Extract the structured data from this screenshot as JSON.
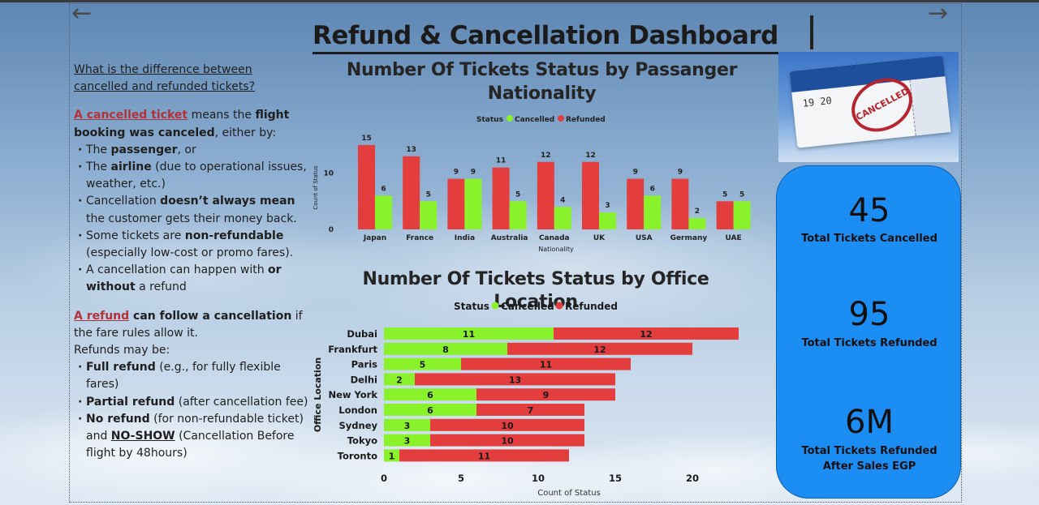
{
  "title": "Refund & Cancellation Dashboard",
  "nav": {
    "back_glyph": "←",
    "forward_glyph": "→"
  },
  "info": {
    "question": "What is the difference between cancelled and refunded tickets?",
    "cancel_term": "A cancelled ticket",
    "cancel_text_1": " means the ",
    "cancel_bold": "flight booking was canceled",
    "cancel_text_2": ", either by:",
    "b1_pre": "The ",
    "b1_bold": "passenger",
    "b1_post": ", or",
    "b2_pre": "The ",
    "b2_bold": "airline",
    "b2_post": " (due to operational issues, weather, etc.)",
    "b3_pre": "Cancellation ",
    "b3_bold": "doesn’t always mean",
    "b3_post": " the customer gets their money back.",
    "b4_pre": "Some tickets are ",
    "b4_bold": "non-refundable",
    "b4_post": " (especially low-cost or promo fares).",
    "b5_pre": "A cancellation can happen with ",
    "b5_bold1": "or without",
    "b5_post": " a refund",
    "refund_term": "A refund",
    "refund_bold": " can follow a cancellation",
    "refund_text": " if the fare rules allow it.",
    "refunds_may_be": "Refunds may be:",
    "r1_bold": "Full refund",
    "r1_post": " (e.g., for fully flexible fares)",
    "r2_bold": "Partial refund",
    "r2_post": " (after cancellation fee)",
    "r3_bold": "No refund",
    "r3_mid": " (for non-refundable ticket) and ",
    "r3_noshow": "NO-SHOW",
    "r3_post": " (Cancellation Before flight by 48hours)"
  },
  "kpis": [
    {
      "value": "45",
      "label": "Total Tickets Cancelled"
    },
    {
      "value": "95",
      "label": "Total Tickets Refunded"
    },
    {
      "value": "6M",
      "label": "Total Tickets Refunded After Sales EGP"
    }
  ],
  "photo": {
    "stamp_text": "CANCELLED",
    "ticket_text": "19 20"
  },
  "colors": {
    "cancelled": "#89f22b",
    "refunded": "#e43d3d",
    "kpi_bg": "#1c8df2"
  },
  "chart_data": [
    {
      "type": "bar",
      "title": "Number Of Tickets Status by Passanger Nationality",
      "legend_title": "Status",
      "xlabel": "Nationality",
      "ylabel": "Count of Status",
      "ylim": [
        0,
        16
      ],
      "yticks": [
        0,
        10
      ],
      "categories": [
        "Japan",
        "France",
        "India",
        "Australia",
        "Canada",
        "UK",
        "USA",
        "Germany",
        "UAE"
      ],
      "series": [
        {
          "name": "Refunded",
          "values": [
            15,
            13,
            9,
            11,
            12,
            12,
            9,
            9,
            5
          ]
        },
        {
          "name": "Cancelled",
          "values": [
            6,
            5,
            9,
            5,
            4,
            3,
            6,
            2,
            5
          ]
        }
      ]
    },
    {
      "type": "bar",
      "orientation": "horizontal",
      "stacked": true,
      "title": "Number Of Tickets Status by Office Location",
      "legend_title": "Status",
      "xlabel": "Count of Status",
      "ylabel": "Office Location",
      "xlim": [
        0,
        23
      ],
      "xticks": [
        0,
        5,
        10,
        15,
        20
      ],
      "categories": [
        "Dubai",
        "Frankfurt",
        "Paris",
        "Delhi",
        "New York",
        "London",
        "Sydney",
        "Tokyo",
        "Toronto"
      ],
      "series": [
        {
          "name": "Cancelled",
          "values": [
            11,
            8,
            5,
            2,
            6,
            6,
            3,
            3,
            1
          ]
        },
        {
          "name": "Refunded",
          "values": [
            12,
            12,
            11,
            13,
            9,
            7,
            10,
            10,
            11
          ]
        }
      ]
    }
  ]
}
